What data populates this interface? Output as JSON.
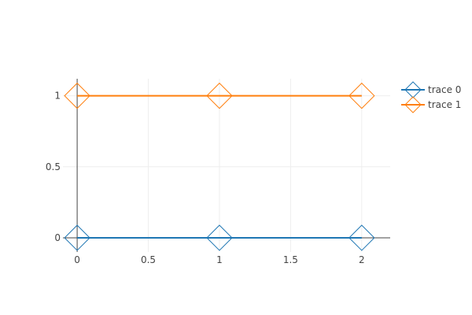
{
  "chart_data": {
    "type": "line",
    "x": [
      0,
      1,
      2
    ],
    "series": [
      {
        "name": "trace 0",
        "values": [
          0,
          0,
          0
        ],
        "color": "#1f77b4",
        "marker": "diamond-open"
      },
      {
        "name": "trace 1",
        "values": [
          1,
          1,
          1
        ],
        "color": "#ff7f0e",
        "marker": "diamond-open"
      }
    ],
    "xlim": [
      -0.1,
      2.2
    ],
    "ylim": [
      -0.1,
      1.12
    ],
    "x_ticks": [
      0,
      0.5,
      1,
      1.5,
      2
    ],
    "x_tick_labels": [
      "0",
      "0.5",
      "1",
      "1.5",
      "2"
    ],
    "y_ticks": [
      0,
      0.5,
      1
    ],
    "y_tick_labels": [
      "0",
      "0.5",
      "1"
    ],
    "grid": true,
    "legend_position": "top-right",
    "title": "",
    "xlabel": "",
    "ylabel": ""
  },
  "colors": {
    "grid": "#eeeeee",
    "axis": "#444444"
  }
}
